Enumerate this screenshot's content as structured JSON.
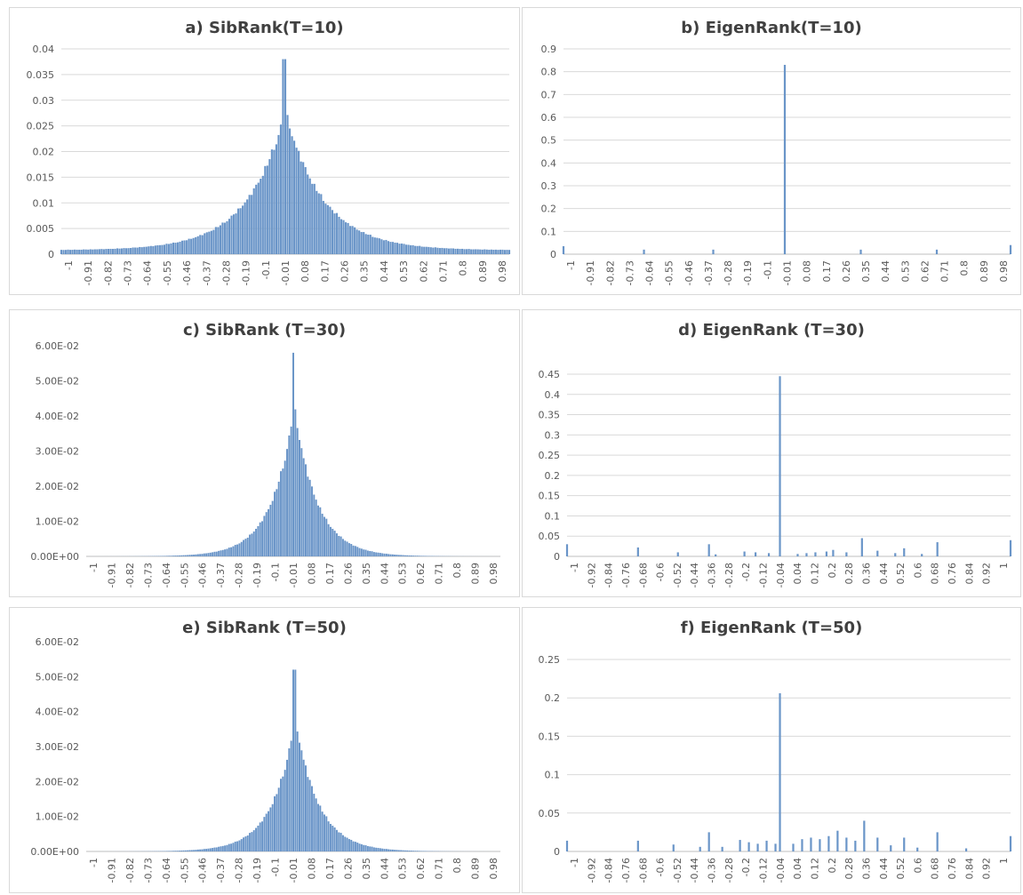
{
  "colors": {
    "bar": "#6a95c8",
    "grid": "#d9d9d9",
    "axis_text": "#595959",
    "title": "#404040"
  },
  "chart_data": [
    {
      "id": "a",
      "type": "bar",
      "title": "a) SibRank(T=10)",
      "grid": true,
      "ylim": [
        0,
        0.04
      ],
      "yticks": [
        0,
        0.005,
        0.01,
        0.015,
        0.02,
        0.025,
        0.03,
        0.035,
        0.04
      ],
      "yticklabels": [
        "0",
        "0.005",
        "0.01",
        "0.015",
        "0.02",
        "0.025",
        "0.03",
        "0.035",
        "0.04"
      ],
      "xticklabels": [
        "-1",
        "-0.91",
        "-0.82",
        "-0.73",
        "-0.64",
        "-0.55",
        "-0.46",
        "-0.37",
        "-0.28",
        "-0.19",
        "-0.1",
        "-0.01",
        "0.08",
        "0.17",
        "0.26",
        "0.35",
        "0.44",
        "0.53",
        "0.62",
        "0.71",
        "0.8",
        "0.89",
        "0.98"
      ],
      "xlim": [
        -1,
        1
      ],
      "distribution": {
        "center": 0.0,
        "peak": 0.038,
        "scale": 0.17,
        "floor": 0.0008,
        "bins": 200,
        "spike_at": -0.005
      }
    },
    {
      "id": "b",
      "type": "bar",
      "title": "b) EigenRank(T=10)",
      "grid": true,
      "ylim": [
        0,
        0.9
      ],
      "yticks": [
        0,
        0.1,
        0.2,
        0.3,
        0.4,
        0.5,
        0.6,
        0.7,
        0.8,
        0.9
      ],
      "yticklabels": [
        "0",
        "0.1",
        "0.2",
        "0.3",
        "0.4",
        "0.5",
        "0.6",
        "0.7",
        "0.8",
        "0.9"
      ],
      "xticklabels": [
        "-1",
        "-0.91",
        "-0.82",
        "-0.73",
        "-0.64",
        "-0.55",
        "-0.46",
        "-0.37",
        "-0.28",
        "-0.19",
        "-0.1",
        "-0.01",
        "0.08",
        "0.17",
        "0.26",
        "0.35",
        "0.44",
        "0.53",
        "0.62",
        "0.71",
        "0.8",
        "0.89",
        "0.98"
      ],
      "xlim": [
        -1,
        1
      ],
      "bars": [
        {
          "x": -1.0,
          "y": 0.035
        },
        {
          "x": -0.64,
          "y": 0.02
        },
        {
          "x": -0.33,
          "y": 0.02
        },
        {
          "x": -0.01,
          "y": 0.83
        },
        {
          "x": 0.33,
          "y": 0.02
        },
        {
          "x": 0.67,
          "y": 0.02
        },
        {
          "x": 1.0,
          "y": 0.04
        }
      ]
    },
    {
      "id": "c",
      "type": "bar",
      "title": "c) SibRank (T=30)",
      "grid": false,
      "ylim": [
        0,
        0.06
      ],
      "yticks": [
        0,
        0.01,
        0.02,
        0.03,
        0.04,
        0.05,
        0.06
      ],
      "yticklabels": [
        "0.00E+00",
        "1.00E-02",
        "2.00E-02",
        "3.00E-02",
        "4.00E-02",
        "5.00E-02",
        "6.00E-02"
      ],
      "xticklabels": [
        "-1",
        "-0.91",
        "-0.82",
        "-0.73",
        "-0.64",
        "-0.55",
        "-0.46",
        "-0.37",
        "-0.28",
        "-0.19",
        "-0.1",
        "-0.01",
        "0.08",
        "0.17",
        "0.26",
        "0.35",
        "0.44",
        "0.53",
        "0.62",
        "0.71",
        "0.8",
        "0.89",
        "0.98"
      ],
      "xlim": [
        -1,
        1
      ],
      "distribution": {
        "center": 0.005,
        "peak": 0.058,
        "scale": 0.11,
        "floor": 0.0,
        "bins": 200,
        "spike_at": 0.0
      }
    },
    {
      "id": "d",
      "type": "bar",
      "title": "d) EigenRank (T=30)",
      "grid": true,
      "ylim": [
        0,
        0.45
      ],
      "yticks": [
        0,
        0.05,
        0.1,
        0.15,
        0.2,
        0.25,
        0.3,
        0.35,
        0.4,
        0.45
      ],
      "yticklabels": [
        "0",
        "0.05",
        "0.1",
        "0.15",
        "0.2",
        "0.25",
        "0.3",
        "0.35",
        "0.4",
        "0.45"
      ],
      "xticklabels": [
        "-1",
        "-0.92",
        "-0.84",
        "-0.76",
        "-0.68",
        "-0.6",
        "-0.52",
        "-0.44",
        "-0.36",
        "-0.28",
        "-0.2",
        "-0.12",
        "-0.04",
        "0.04",
        "0.12",
        "0.2",
        "0.28",
        "0.36",
        "0.44",
        "0.52",
        "0.6",
        "0.68",
        "0.76",
        "0.84",
        "0.92",
        "1"
      ],
      "xlim": [
        -1,
        1
      ],
      "bars": [
        {
          "x": -1.0,
          "y": 0.03
        },
        {
          "x": -0.68,
          "y": 0.022
        },
        {
          "x": -0.5,
          "y": 0.01
        },
        {
          "x": -0.36,
          "y": 0.03
        },
        {
          "x": -0.33,
          "y": 0.005
        },
        {
          "x": -0.2,
          "y": 0.012
        },
        {
          "x": -0.15,
          "y": 0.01
        },
        {
          "x": -0.09,
          "y": 0.008
        },
        {
          "x": -0.04,
          "y": 0.445
        },
        {
          "x": 0.04,
          "y": 0.006
        },
        {
          "x": 0.08,
          "y": 0.008
        },
        {
          "x": 0.12,
          "y": 0.01
        },
        {
          "x": 0.17,
          "y": 0.012
        },
        {
          "x": 0.2,
          "y": 0.016
        },
        {
          "x": 0.26,
          "y": 0.01
        },
        {
          "x": 0.33,
          "y": 0.045
        },
        {
          "x": 0.4,
          "y": 0.014
        },
        {
          "x": 0.48,
          "y": 0.008
        },
        {
          "x": 0.52,
          "y": 0.02
        },
        {
          "x": 0.6,
          "y": 0.006
        },
        {
          "x": 0.67,
          "y": 0.035
        },
        {
          "x": 1.0,
          "y": 0.04
        }
      ]
    },
    {
      "id": "e",
      "type": "bar",
      "title": "e) SibRank (T=50)",
      "grid": false,
      "ylim": [
        0,
        0.06
      ],
      "yticks": [
        0,
        0.01,
        0.02,
        0.03,
        0.04,
        0.05,
        0.06
      ],
      "yticklabels": [
        "0.00E+00",
        "1.00E-02",
        "2.00E-02",
        "3.00E-02",
        "4.00E-02",
        "5.00E-02",
        "6.00E-02"
      ],
      "xticklabels": [
        "-1",
        "-0.91",
        "-0.82",
        "-0.73",
        "-0.64",
        "-0.55",
        "-0.46",
        "-0.37",
        "-0.28",
        "-0.19",
        "-0.1",
        "-0.01",
        "0.08",
        "0.17",
        "0.26",
        "0.35",
        "0.44",
        "0.53",
        "0.62",
        "0.71",
        "0.8",
        "0.89",
        "0.98"
      ],
      "xlim": [
        -1,
        1
      ],
      "distribution": {
        "center": 0.01,
        "peak": 0.052,
        "scale": 0.11,
        "floor": 0.0,
        "bins": 200,
        "spike_at": 0.005
      }
    },
    {
      "id": "f",
      "type": "bar",
      "title": "f) EigenRank (T=50)",
      "grid": true,
      "ylim": [
        0,
        0.25
      ],
      "yticks": [
        0,
        0.05,
        0.1,
        0.15,
        0.2,
        0.25
      ],
      "yticklabels": [
        "0",
        "0.05",
        "0.1",
        "0.15",
        "0.2",
        "0.25"
      ],
      "xticklabels": [
        "-1",
        "-0.92",
        "-0.84",
        "-0.76",
        "-0.68",
        "-0.6",
        "-0.52",
        "-0.44",
        "-0.36",
        "-0.28",
        "-0.2",
        "-0.12",
        "-0.04",
        "0.04",
        "0.12",
        "0.2",
        "0.28",
        "0.36",
        "0.44",
        "0.52",
        "0.6",
        "0.68",
        "0.76",
        "0.84",
        "0.92",
        "1"
      ],
      "xlim": [
        -1,
        1
      ],
      "bars": [
        {
          "x": -1.0,
          "y": 0.014
        },
        {
          "x": -0.68,
          "y": 0.014
        },
        {
          "x": -0.52,
          "y": 0.009
        },
        {
          "x": -0.4,
          "y": 0.006
        },
        {
          "x": -0.36,
          "y": 0.025
        },
        {
          "x": -0.3,
          "y": 0.006
        },
        {
          "x": -0.22,
          "y": 0.015
        },
        {
          "x": -0.18,
          "y": 0.012
        },
        {
          "x": -0.14,
          "y": 0.01
        },
        {
          "x": -0.1,
          "y": 0.014
        },
        {
          "x": -0.06,
          "y": 0.01
        },
        {
          "x": -0.04,
          "y": 0.206
        },
        {
          "x": 0.02,
          "y": 0.01
        },
        {
          "x": 0.06,
          "y": 0.016
        },
        {
          "x": 0.1,
          "y": 0.018
        },
        {
          "x": 0.14,
          "y": 0.016
        },
        {
          "x": 0.18,
          "y": 0.02
        },
        {
          "x": 0.22,
          "y": 0.027
        },
        {
          "x": 0.26,
          "y": 0.018
        },
        {
          "x": 0.3,
          "y": 0.014
        },
        {
          "x": 0.34,
          "y": 0.04
        },
        {
          "x": 0.4,
          "y": 0.018
        },
        {
          "x": 0.46,
          "y": 0.008
        },
        {
          "x": 0.52,
          "y": 0.018
        },
        {
          "x": 0.58,
          "y": 0.005
        },
        {
          "x": 0.67,
          "y": 0.025
        },
        {
          "x": 0.8,
          "y": 0.004
        },
        {
          "x": 1.0,
          "y": 0.02
        }
      ]
    }
  ]
}
